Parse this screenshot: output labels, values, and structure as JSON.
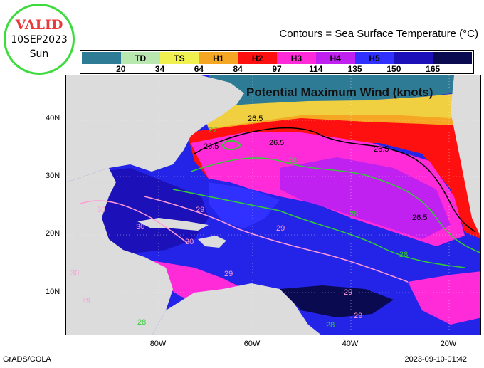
{
  "stamp": {
    "valid": "VALID",
    "date": "10SEP2023",
    "day": "Sun"
  },
  "header": {
    "contour_title": "Contours = Sea Surface Temperature (°C)"
  },
  "map_title": "Potential Maximum Wind (knots)",
  "colorbar": {
    "segments": [
      {
        "label": "",
        "color": "#2e7b95"
      },
      {
        "label": "TD",
        "color": "#b8e8b0"
      },
      {
        "label": "TS",
        "color": "#f0f050"
      },
      {
        "label": "H1",
        "color": "#f5a623"
      },
      {
        "label": "H2",
        "color": "#ff1010"
      },
      {
        "label": "H3",
        "color": "#ff2ad8"
      },
      {
        "label": "H4",
        "color": "#c020f0"
      },
      {
        "label": "H5",
        "color": "#3030ff"
      },
      {
        "label": "",
        "color": "#1c10b8"
      },
      {
        "label": "",
        "color": "#0a0a50"
      }
    ],
    "ticks": [
      "20",
      "34",
      "64",
      "84",
      "97",
      "114",
      "135",
      "150",
      "165"
    ]
  },
  "axes": {
    "lat_labels": [
      "40N",
      "30N",
      "20N",
      "10N"
    ],
    "lon_labels": [
      "80W",
      "60W",
      "40W",
      "20W"
    ]
  },
  "contour_labels": [
    "26.5",
    "26.5",
    "26.5",
    "26.5",
    "26.5",
    "27",
    "28",
    "28",
    "28",
    "28",
    "28",
    "29",
    "29",
    "29",
    "29",
    "29",
    "29",
    "30",
    "30",
    "30",
    "30"
  ],
  "footer": {
    "left": "GrADS/COLA",
    "right": "2023-09-10-01:42"
  },
  "colors": {
    "land": "#dcdcdc",
    "contour_green": "#33cc33",
    "contour_pink": "#ff9ad6",
    "contour_black": "#000000",
    "stamp_ring": "#3ddc3d",
    "valid_red": "#e83a3a"
  }
}
